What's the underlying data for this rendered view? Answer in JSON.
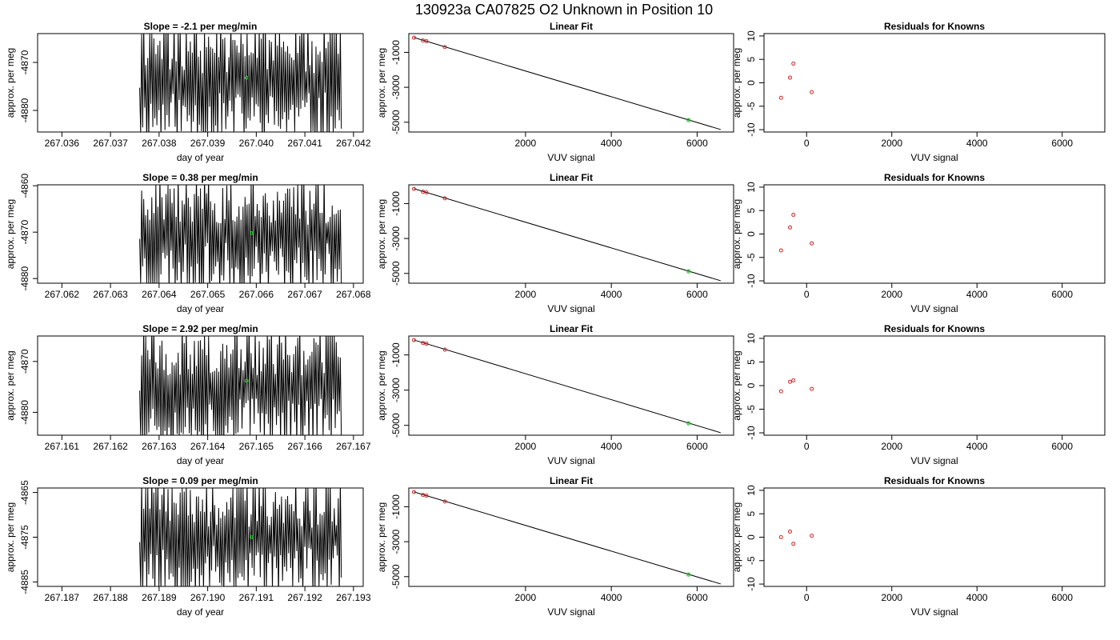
{
  "figure_title": "130923a      CA07825    O2 Unknown in Position  10",
  "chart_data": [
    {
      "row": 0,
      "col": 0,
      "type": "line",
      "title": "Slope =  -2.1  per meg/min",
      "xlabel": "day of year",
      "ylabel": "approx. per meg",
      "xlim": [
        267.0355,
        267.0422
      ],
      "ylim": [
        -4884.5,
        -4864
      ],
      "xticks": [
        267.036,
        267.037,
        267.038,
        267.039,
        267.04,
        267.041,
        267.042
      ],
      "xtick_labels": [
        "267.036",
        "267.037",
        "267.038",
        "267.039",
        "267.040",
        "267.041",
        "267.042"
      ],
      "yticks": [
        -4870,
        -4880
      ],
      "ytick_labels": [
        "-4870",
        "-4880"
      ],
      "trace_start": 267.0376,
      "trace_end": 267.04175,
      "trace_min": -4884.5,
      "trace_max": -4864,
      "trace_seed": 11,
      "mean_point": {
        "x": 267.0398,
        "y": -4873.2,
        "color": "#22cc22"
      }
    },
    {
      "row": 0,
      "col": 1,
      "type": "scatter",
      "title": "Linear Fit",
      "xlabel": "VUV signal",
      "ylabel": "approx. per meg",
      "xlim": [
        -720,
        6850
      ],
      "ylim": [
        -5560,
        75
      ],
      "xticks": [
        2000,
        4000,
        6000
      ],
      "xtick_labels": [
        "2000",
        "4000",
        "6000"
      ],
      "yticks": [
        -1000,
        -3000,
        -5000
      ],
      "ytick_labels": [
        "-1000",
        "-3000",
        "-5000"
      ],
      "fit_line": {
        "x": [
          -600,
          6550
        ],
        "y": [
          -150,
          -5420
        ]
      },
      "knowns": {
        "x": [
          -600,
          -390,
          -310,
          120
        ],
        "y": [
          -160,
          -320,
          -360,
          -700
        ],
        "color": "#cc2222"
      },
      "unknown": {
        "x": [
          5800
        ],
        "y": [
          -4880
        ],
        "color": "#22cc22"
      }
    },
    {
      "row": 0,
      "col": 2,
      "type": "scatter",
      "title": "Residuals for Knowns",
      "xlabel": "VUV signal",
      "ylabel": "approx. per meg",
      "xlim": [
        -1000,
        7000
      ],
      "ylim": [
        -10.5,
        10.5
      ],
      "xticks": [
        0,
        2000,
        4000,
        6000
      ],
      "xtick_labels": [
        "0",
        "2000",
        "4000",
        "6000"
      ],
      "yticks": [
        10,
        5,
        0,
        -5,
        -10
      ],
      "ytick_labels": [
        "10",
        "5",
        "0",
        "-5",
        "-10"
      ],
      "knowns": {
        "x": [
          -600,
          -390,
          -310,
          120
        ],
        "y": [
          -3.2,
          1.1,
          4.1,
          -2.0
        ],
        "color": "#cc2222"
      }
    },
    {
      "row": 1,
      "col": 0,
      "type": "line",
      "title": "Slope =  0.38  per meg/min",
      "xlabel": "day of year",
      "ylabel": "approx. per meg",
      "xlim": [
        267.0615,
        267.0682
      ],
      "ylim": [
        -4881,
        -4859.8
      ],
      "xticks": [
        267.062,
        267.063,
        267.064,
        267.065,
        267.066,
        267.067,
        267.068
      ],
      "xtick_labels": [
        "267.062",
        "267.063",
        "267.064",
        "267.065",
        "267.066",
        "267.067",
        "267.068"
      ],
      "yticks": [
        -4860,
        -4870,
        -4880
      ],
      "ytick_labels": [
        "-4860",
        "-4870",
        "-4880"
      ],
      "trace_start": 267.0636,
      "trace_end": 267.06775,
      "trace_min": -4881,
      "trace_max": -4859.8,
      "trace_seed": 23,
      "mean_point": {
        "x": 267.0659,
        "y": -4870.2,
        "color": "#22cc22"
      }
    },
    {
      "row": 1,
      "col": 1,
      "type": "scatter",
      "title": "Linear Fit",
      "xlabel": "VUV signal",
      "ylabel": "approx. per meg",
      "xlim": [
        -720,
        6850
      ],
      "ylim": [
        -5560,
        75
      ],
      "xticks": [
        2000,
        4000,
        6000
      ],
      "xtick_labels": [
        "2000",
        "4000",
        "6000"
      ],
      "yticks": [
        -1000,
        -3000,
        -5000
      ],
      "ytick_labels": [
        "-1000",
        "-3000",
        "-5000"
      ],
      "fit_line": {
        "x": [
          -600,
          6550
        ],
        "y": [
          -150,
          -5420
        ]
      },
      "knowns": {
        "x": [
          -600,
          -390,
          -310,
          120
        ],
        "y": [
          -160,
          -320,
          -360,
          -700
        ],
        "color": "#cc2222"
      },
      "unknown": {
        "x": [
          5800
        ],
        "y": [
          -4880
        ],
        "color": "#22cc22"
      }
    },
    {
      "row": 1,
      "col": 2,
      "type": "scatter",
      "title": "Residuals for Knowns",
      "xlabel": "VUV signal",
      "ylabel": "approx. per meg",
      "xlim": [
        -1000,
        7000
      ],
      "ylim": [
        -10.5,
        10.5
      ],
      "xticks": [
        0,
        2000,
        4000,
        6000
      ],
      "xtick_labels": [
        "0",
        "2000",
        "4000",
        "6000"
      ],
      "yticks": [
        10,
        5,
        0,
        -5,
        -10
      ],
      "ytick_labels": [
        "10",
        "5",
        "0",
        "-5",
        "-10"
      ],
      "knowns": {
        "x": [
          -600,
          -390,
          -310,
          120
        ],
        "y": [
          -3.5,
          1.4,
          4.1,
          -2.0
        ],
        "color": "#cc2222"
      }
    },
    {
      "row": 2,
      "col": 0,
      "type": "line",
      "title": "Slope =  2.92  per meg/min",
      "xlabel": "day of year",
      "ylabel": "approx. per meg",
      "xlim": [
        267.1605,
        267.1672
      ],
      "ylim": [
        -4884.5,
        -4865
      ],
      "xticks": [
        267.161,
        267.162,
        267.163,
        267.164,
        267.165,
        267.166,
        267.167
      ],
      "xtick_labels": [
        "267.161",
        "267.162",
        "267.163",
        "267.164",
        "267.165",
        "267.166",
        "267.167"
      ],
      "yticks": [
        -4870,
        -4880
      ],
      "ytick_labels": [
        "-4870",
        "-4880"
      ],
      "trace_start": 267.1626,
      "trace_end": 267.16675,
      "trace_min": -4884.5,
      "trace_max": -4865,
      "trace_seed": 37,
      "mean_point": {
        "x": 267.1648,
        "y": -4873.8,
        "color": "#22cc22"
      }
    },
    {
      "row": 2,
      "col": 1,
      "type": "scatter",
      "title": "Linear Fit",
      "xlabel": "VUV signal",
      "ylabel": "approx. per meg",
      "xlim": [
        -720,
        6850
      ],
      "ylim": [
        -5560,
        75
      ],
      "xticks": [
        2000,
        4000,
        6000
      ],
      "xtick_labels": [
        "2000",
        "4000",
        "6000"
      ],
      "yticks": [
        -1000,
        -3000,
        -5000
      ],
      "ytick_labels": [
        "-1000",
        "-3000",
        "-5000"
      ],
      "fit_line": {
        "x": [
          -600,
          6550
        ],
        "y": [
          -150,
          -5420
        ]
      },
      "knowns": {
        "x": [
          -600,
          -390,
          -310,
          120
        ],
        "y": [
          -160,
          -320,
          -360,
          -700
        ],
        "color": "#cc2222"
      },
      "unknown": {
        "x": [
          5800
        ],
        "y": [
          -4880
        ],
        "color": "#22cc22"
      }
    },
    {
      "row": 2,
      "col": 2,
      "type": "scatter",
      "title": "Residuals for Knowns",
      "xlabel": "VUV signal",
      "ylabel": "approx. per meg",
      "xlim": [
        -1000,
        7000
      ],
      "ylim": [
        -10.5,
        10.5
      ],
      "xticks": [
        0,
        2000,
        4000,
        6000
      ],
      "xtick_labels": [
        "0",
        "2000",
        "4000",
        "6000"
      ],
      "yticks": [
        10,
        5,
        0,
        -5,
        -10
      ],
      "ytick_labels": [
        "10",
        "5",
        "0",
        "-5",
        "-10"
      ],
      "knowns": {
        "x": [
          -600,
          -390,
          -310,
          120
        ],
        "y": [
          -1.2,
          0.8,
          1.1,
          -0.7
        ],
        "color": "#cc2222"
      }
    },
    {
      "row": 3,
      "col": 0,
      "type": "line",
      "title": "Slope =  0.09  per meg/min",
      "xlabel": "day of year",
      "ylabel": "approx. per meg",
      "xlim": [
        267.1865,
        267.1932
      ],
      "ylim": [
        -4886,
        -4864
      ],
      "xticks": [
        267.187,
        267.188,
        267.189,
        267.19,
        267.191,
        267.192,
        267.193
      ],
      "xtick_labels": [
        "267.187",
        "267.188",
        "267.189",
        "267.190",
        "267.191",
        "267.192",
        "267.193"
      ],
      "yticks": [
        -4865,
        -4875,
        -4885
      ],
      "ytick_labels": [
        "-4865",
        "-4875",
        "-4885"
      ],
      "trace_start": 267.1886,
      "trace_end": 267.19275,
      "trace_min": -4886,
      "trace_max": -4864,
      "trace_seed": 53,
      "mean_point": {
        "x": 267.1909,
        "y": -4875.0,
        "color": "#22cc22"
      }
    },
    {
      "row": 3,
      "col": 1,
      "type": "scatter",
      "title": "Linear Fit",
      "xlabel": "VUV signal",
      "ylabel": "approx. per meg",
      "xlim": [
        -720,
        6850
      ],
      "ylim": [
        -5560,
        75
      ],
      "xticks": [
        2000,
        4000,
        6000
      ],
      "xtick_labels": [
        "2000",
        "4000",
        "6000"
      ],
      "yticks": [
        -1000,
        -3000,
        -5000
      ],
      "ytick_labels": [
        "-1000",
        "-3000",
        "-5000"
      ],
      "fit_line": {
        "x": [
          -600,
          6550
        ],
        "y": [
          -150,
          -5420
        ]
      },
      "knowns": {
        "x": [
          -600,
          -390,
          -310,
          120
        ],
        "y": [
          -160,
          -320,
          -360,
          -700
        ],
        "color": "#cc2222"
      },
      "unknown": {
        "x": [
          5800
        ],
        "y": [
          -4880
        ],
        "color": "#22cc22"
      }
    },
    {
      "row": 3,
      "col": 2,
      "type": "scatter",
      "title": "Residuals for Knowns",
      "xlabel": "VUV signal",
      "ylabel": "approx. per meg",
      "xlim": [
        -1000,
        7000
      ],
      "ylim": [
        -10.5,
        10.5
      ],
      "xticks": [
        0,
        2000,
        4000,
        6000
      ],
      "xtick_labels": [
        "0",
        "2000",
        "4000",
        "6000"
      ],
      "yticks": [
        10,
        5,
        0,
        -5,
        -10
      ],
      "ytick_labels": [
        "10",
        "5",
        "0",
        "-5",
        "-10"
      ],
      "knowns": {
        "x": [
          -600,
          -390,
          -310,
          120
        ],
        "y": [
          0.0,
          1.2,
          -1.4,
          0.3
        ],
        "color": "#cc2222"
      }
    }
  ]
}
